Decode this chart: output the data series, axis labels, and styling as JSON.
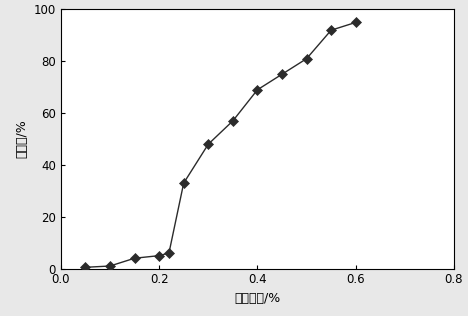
{
  "x": [
    0.05,
    0.1,
    0.15,
    0.2,
    0.22,
    0.25,
    0.3,
    0.35,
    0.4,
    0.45,
    0.5,
    0.55,
    0.6
  ],
  "y": [
    0.5,
    1.0,
    4.0,
    5.0,
    6.0,
    33,
    48,
    57,
    69,
    75,
    81,
    92,
    95
  ],
  "xlabel": "单体浓度/%",
  "ylabel": "皂核率/%",
  "xlim": [
    0,
    0.8
  ],
  "ylim": [
    0,
    100
  ],
  "xticks": [
    0,
    0.2,
    0.4,
    0.6,
    0.8
  ],
  "yticks": [
    0,
    20,
    40,
    60,
    80,
    100
  ],
  "line_color": "#2b2b2b",
  "marker_color": "#2b2b2b",
  "bg_color": "#e8e8e8",
  "plot_bg_color": "#ffffff",
  "xlabel_fontsize": 9,
  "ylabel_fontsize": 9,
  "tick_fontsize": 8.5
}
